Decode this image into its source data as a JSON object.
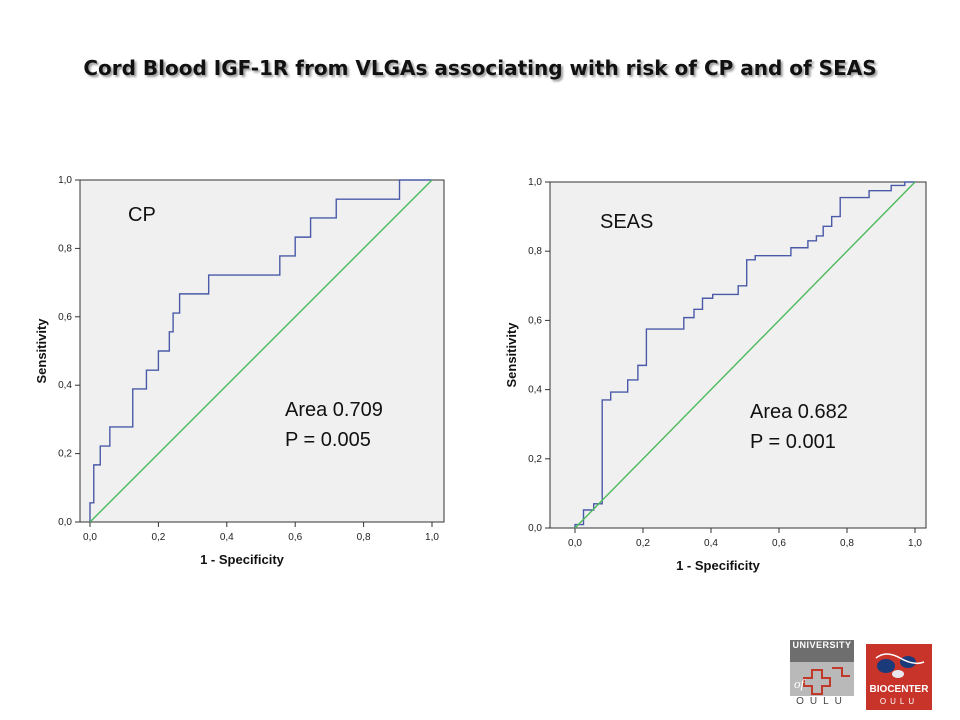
{
  "slide": {
    "title": "Cord Blood IGF-1R from VLGAs associating with risk of CP and of SEAS"
  },
  "chart_data": [
    {
      "type": "line",
      "label": "CP",
      "xlabel": "1 - Specificity",
      "ylabel": "Sensitivity",
      "xlim": [
        0,
        1
      ],
      "ylim": [
        0,
        1
      ],
      "x_ticks": [
        "0,0",
        "0,2",
        "0,4",
        "0,6",
        "0,8",
        "1,0"
      ],
      "y_ticks": [
        "0,0",
        "0,2",
        "0,4",
        "0,6",
        "0,8",
        "1,0"
      ],
      "area_text": "Area 0.709",
      "p_text": "P = 0.005",
      "grid": false,
      "background": "#f0f0f0",
      "series": [
        {
          "color": "#4a5aa8",
          "points": [
            [
              0,
              0
            ],
            [
              0,
              0.056
            ],
            [
              0.011,
              0.056
            ],
            [
              0.011,
              0.167
            ],
            [
              0.03,
              0.167
            ],
            [
              0.03,
              0.222
            ],
            [
              0.058,
              0.222
            ],
            [
              0.058,
              0.278
            ],
            [
              0.125,
              0.278
            ],
            [
              0.125,
              0.389
            ],
            [
              0.165,
              0.389
            ],
            [
              0.165,
              0.444
            ],
            [
              0.2,
              0.444
            ],
            [
              0.2,
              0.5
            ],
            [
              0.232,
              0.5
            ],
            [
              0.232,
              0.556
            ],
            [
              0.243,
              0.556
            ],
            [
              0.243,
              0.611
            ],
            [
              0.262,
              0.611
            ],
            [
              0.262,
              0.667
            ],
            [
              0.347,
              0.667
            ],
            [
              0.347,
              0.722
            ],
            [
              0.555,
              0.722
            ],
            [
              0.555,
              0.778
            ],
            [
              0.6,
              0.778
            ],
            [
              0.6,
              0.833
            ],
            [
              0.645,
              0.833
            ],
            [
              0.645,
              0.889
            ],
            [
              0.72,
              0.889
            ],
            [
              0.72,
              0.944
            ],
            [
              0.905,
              0.944
            ],
            [
              0.905,
              1
            ],
            [
              1,
              1
            ]
          ]
        },
        {
          "color": "#4cba5c",
          "points": [
            [
              0,
              0
            ],
            [
              1,
              1
            ]
          ]
        }
      ]
    },
    {
      "type": "line",
      "label": "SEAS",
      "xlabel": "1 - Specificity",
      "ylabel": "Sensitivity",
      "xlim": [
        0,
        1
      ],
      "ylim": [
        0,
        1
      ],
      "x_ticks": [
        "0,0",
        "0,2",
        "0,4",
        "0,6",
        "0,8",
        "1,0"
      ],
      "y_ticks": [
        "0,0",
        "0,2",
        "0,4",
        "0,6",
        "0,8",
        "1,0"
      ],
      "area_text": "Area 0.682",
      "p_text": "P = 0.001",
      "grid": false,
      "background": "#f0f0f0",
      "series": [
        {
          "color": "#4a5aa8",
          "points": [
            [
              0,
              0
            ],
            [
              0,
              0.01
            ],
            [
              0.025,
              0.01
            ],
            [
              0.025,
              0.052
            ],
            [
              0.055,
              0.052
            ],
            [
              0.055,
              0.07
            ],
            [
              0.08,
              0.07
            ],
            [
              0.08,
              0.37
            ],
            [
              0.105,
              0.37
            ],
            [
              0.105,
              0.393
            ],
            [
              0.155,
              0.393
            ],
            [
              0.155,
              0.428
            ],
            [
              0.185,
              0.428
            ],
            [
              0.185,
              0.47
            ],
            [
              0.21,
              0.47
            ],
            [
              0.21,
              0.575
            ],
            [
              0.32,
              0.575
            ],
            [
              0.32,
              0.608
            ],
            [
              0.35,
              0.608
            ],
            [
              0.35,
              0.632
            ],
            [
              0.375,
              0.632
            ],
            [
              0.375,
              0.664
            ],
            [
              0.405,
              0.664
            ],
            [
              0.405,
              0.675
            ],
            [
              0.48,
              0.675
            ],
            [
              0.48,
              0.7
            ],
            [
              0.505,
              0.7
            ],
            [
              0.505,
              0.775
            ],
            [
              0.53,
              0.775
            ],
            [
              0.53,
              0.787
            ],
            [
              0.635,
              0.787
            ],
            [
              0.635,
              0.81
            ],
            [
              0.685,
              0.81
            ],
            [
              0.685,
              0.83
            ],
            [
              0.71,
              0.83
            ],
            [
              0.71,
              0.844
            ],
            [
              0.73,
              0.844
            ],
            [
              0.73,
              0.872
            ],
            [
              0.755,
              0.872
            ],
            [
              0.755,
              0.9
            ],
            [
              0.78,
              0.9
            ],
            [
              0.78,
              0.955
            ],
            [
              0.865,
              0.955
            ],
            [
              0.865,
              0.975
            ],
            [
              0.93,
              0.975
            ],
            [
              0.93,
              0.99
            ],
            [
              0.97,
              0.99
            ],
            [
              0.97,
              1
            ],
            [
              1,
              1
            ]
          ]
        },
        {
          "color": "#4cba5c",
          "points": [
            [
              0,
              0
            ],
            [
              1,
              1
            ]
          ]
        }
      ]
    }
  ],
  "logos": {
    "oulu": {
      "top_text": "UNIVERSITY",
      "of_text": "of",
      "bottom_text": "OULU",
      "colors": {
        "top": "#6e6e6e",
        "body": "#b9b9b9",
        "mark": "#c0392b"
      }
    },
    "biocenter": {
      "name_text": "BIOCENTER",
      "bottom_text": "OULU",
      "colors": {
        "background": "#c8342a",
        "mark": "#1a3a7a"
      }
    }
  }
}
